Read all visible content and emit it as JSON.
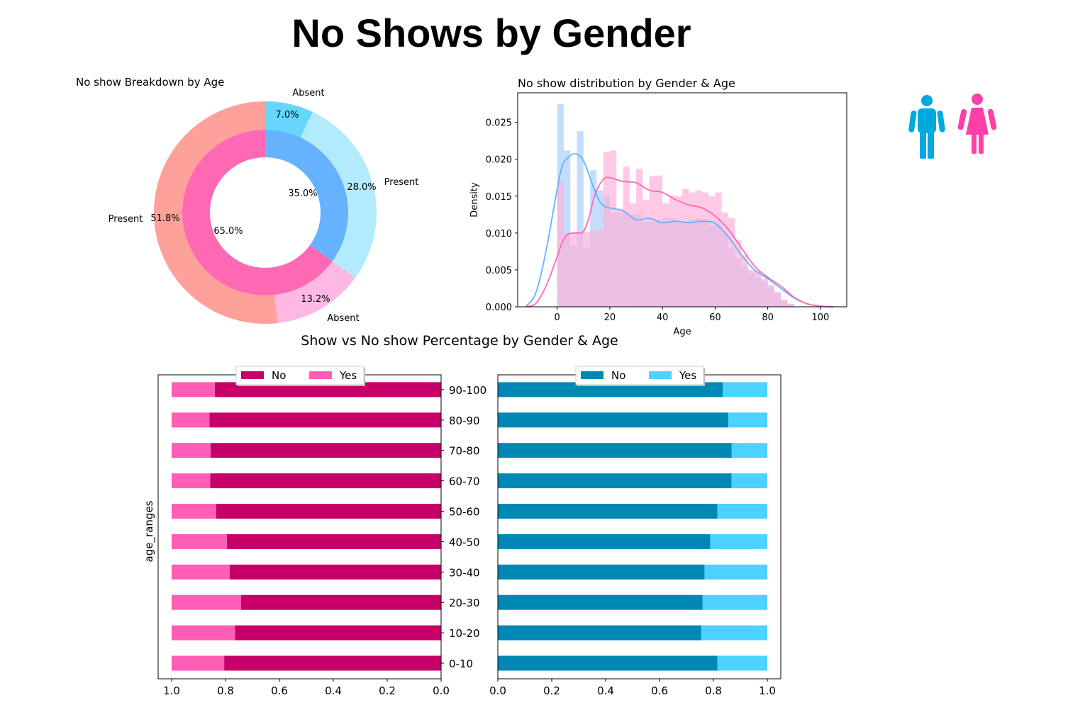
{
  "page": {
    "title": "No Shows by Gender"
  },
  "colors": {
    "present_female": "#fda19a",
    "absent_female": "#ffb8e3",
    "present_male": "#b3ebfe",
    "absent_male": "#66d6fe",
    "inner_female": "#ff69b4",
    "inner_male": "#66b2ff",
    "female_no": "#c60068",
    "female_yes": "#ff5db6",
    "male_no": "#0088b5",
    "male_yes": "#4dd2ff",
    "male_icon": "#00a8e0",
    "female_icon": "#ff3fa8",
    "hist_male": "#a9cdfa",
    "hist_female": "#ffb0d8"
  },
  "icons": [
    "male-icon",
    "female-icon"
  ],
  "chart_data": [
    {
      "type": "pie",
      "title": "No show Breakdown by Age",
      "outer_ring": [
        {
          "label": "Absent",
          "pct_label": "7.0%",
          "value": 7.0
        },
        {
          "label": "Present",
          "pct_label": "28.0%",
          "value": 28.0
        },
        {
          "label": "Absent",
          "pct_label": "13.2%",
          "value": 13.2
        },
        {
          "label": "Present",
          "pct_label": "51.8%",
          "value": 51.8
        }
      ],
      "inner_ring": [
        {
          "pct_label": "35.0%",
          "value": 35.0
        },
        {
          "pct_label": "65.0%",
          "value": 65.0
        }
      ]
    },
    {
      "type": "bar",
      "subtype": "histogram-with-kde",
      "title": "No show distribution by Gender & Age",
      "xlabel": "Age",
      "ylabel": "Density",
      "xlim": [
        -15,
        110
      ],
      "ylim": [
        0,
        0.029
      ],
      "xticks": [
        0,
        20,
        40,
        60,
        80,
        100
      ],
      "yticks": [
        "0.000",
        "0.005",
        "0.010",
        "0.015",
        "0.020",
        "0.025"
      ],
      "bin_width": 2.5,
      "series": [
        {
          "bin_start": 0,
          "values": [
            0.0275,
            0.0212,
            0.0083,
            0.0238,
            0.008,
            0.0185,
            0.0158,
            0.015,
            0.0128,
            0.0128,
            0.0128,
            0.0125,
            0.0125,
            0.0115,
            0.0115,
            0.0118,
            0.012,
            0.012,
            0.0115,
            0.0115,
            0.0118,
            0.012,
            0.0118,
            0.011,
            0.011,
            0.01,
            0.008,
            0.0065,
            0.0055,
            0.0045,
            0.004,
            0.0035,
            0.0025,
            0.0018,
            0.0008,
            0.0004
          ]
        },
        {
          "bin_start": 0,
          "values": [
            0.017,
            0.01,
            0.01,
            0.0101,
            0.0102,
            0.0103,
            0.0105,
            0.021,
            0.0212,
            0.0133,
            0.019,
            0.014,
            0.0187,
            0.0145,
            0.0177,
            0.0178,
            0.014,
            0.0151,
            0.015,
            0.016,
            0.0155,
            0.0158,
            0.0155,
            0.015,
            0.0155,
            0.0128,
            0.012,
            0.009,
            0.007,
            0.005,
            0.0048,
            0.0038,
            0.003,
            0.002,
            0.001,
            0.0004
          ]
        }
      ],
      "kde": [
        {
          "x": [
            -12,
            -8,
            -4,
            0,
            2,
            4,
            6,
            8,
            10,
            12,
            14,
            16,
            18,
            20,
            25,
            30,
            35,
            40,
            45,
            50,
            55,
            60,
            65,
            70,
            75,
            80,
            85,
            90,
            95,
            100,
            105
          ],
          "y": [
            0.0,
            0.002,
            0.008,
            0.016,
            0.0192,
            0.0202,
            0.0207,
            0.0206,
            0.0198,
            0.018,
            0.016,
            0.0144,
            0.0136,
            0.0134,
            0.013,
            0.0118,
            0.012,
            0.0114,
            0.0116,
            0.0114,
            0.0116,
            0.0113,
            0.0095,
            0.007,
            0.005,
            0.0038,
            0.0025,
            0.0012,
            0.0004,
            0.0001,
            0.0
          ]
        },
        {
          "x": [
            -12,
            -8,
            -4,
            0,
            2,
            4,
            6,
            8,
            10,
            12,
            14,
            16,
            18,
            20,
            25,
            30,
            35,
            40,
            45,
            50,
            55,
            60,
            65,
            70,
            75,
            80,
            85,
            90,
            95,
            100,
            105
          ],
          "y": [
            0.0,
            0.0005,
            0.003,
            0.0068,
            0.0088,
            0.0098,
            0.01,
            0.01,
            0.0102,
            0.012,
            0.0148,
            0.0165,
            0.0174,
            0.0175,
            0.017,
            0.0168,
            0.0158,
            0.0155,
            0.0145,
            0.0138,
            0.0134,
            0.0123,
            0.0105,
            0.008,
            0.0055,
            0.004,
            0.0028,
            0.0013,
            0.0004,
            0.0001,
            0.0
          ]
        }
      ]
    },
    {
      "type": "bar",
      "subtype": "stacked-horizontal-mirrored",
      "title": "Show vs No show Percentage by Gender & Age",
      "ylabel": "age_ranges",
      "categories": [
        "0-10",
        "10-20",
        "20-30",
        "30-40",
        "40-50",
        "50-60",
        "60-70",
        "70-80",
        "80-90",
        "90-100"
      ],
      "xticks": [
        "0.0",
        "0.2",
        "0.4",
        "0.6",
        "0.8",
        "1.0"
      ],
      "xticks_reversed": [
        "1.0",
        "0.8",
        "0.6",
        "0.4",
        "0.2",
        "0.0"
      ],
      "legend_labels": [
        "No",
        "Yes"
      ],
      "legend_placement": "top",
      "panels": [
        {
          "name": "",
          "orientation": "reversed",
          "no": [
            0.805,
            0.765,
            0.742,
            0.785,
            0.795,
            0.835,
            0.857,
            0.855,
            0.86,
            0.84
          ]
        },
        {
          "name": "",
          "orientation": "normal",
          "no": [
            0.815,
            0.755,
            0.76,
            0.767,
            0.788,
            0.815,
            0.867,
            0.868,
            0.855,
            0.835
          ]
        }
      ]
    }
  ]
}
